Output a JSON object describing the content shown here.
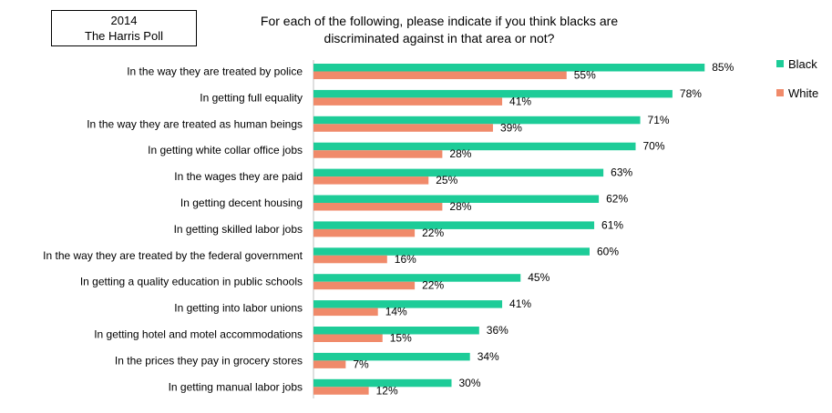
{
  "source": {
    "line1": "2014",
    "line2": "The Harris Poll"
  },
  "title_line1": "For each of the following, please indicate if you think blacks are",
  "title_line2": "discriminated against in that area or not?",
  "colors": {
    "black": "#1dcc98",
    "white": "#f08a6a"
  },
  "chart_data": {
    "type": "bar",
    "orientation": "horizontal",
    "categories": [
      "In the way they are treated by police",
      "In getting full equality",
      "In the way they are treated as human beings",
      "In getting white collar office jobs",
      "In the wages they are paid",
      "In getting decent housing",
      "In getting skilled labor jobs",
      "In the way they are treated by the federal government",
      "In getting a quality education in public schools",
      "In getting into labor unions",
      "In getting hotel and motel accommodations",
      "In the prices they pay in grocery stores",
      "In getting manual labor jobs"
    ],
    "series": [
      {
        "name": "Black",
        "values": [
          85,
          78,
          71,
          70,
          63,
          62,
          61,
          60,
          45,
          41,
          36,
          34,
          30
        ]
      },
      {
        "name": "White",
        "values": [
          55,
          41,
          39,
          28,
          25,
          28,
          22,
          16,
          22,
          14,
          15,
          7,
          12
        ]
      }
    ],
    "value_suffix": "%",
    "xlim": [
      0,
      100
    ],
    "grid": false,
    "legend_position": "top-right"
  }
}
